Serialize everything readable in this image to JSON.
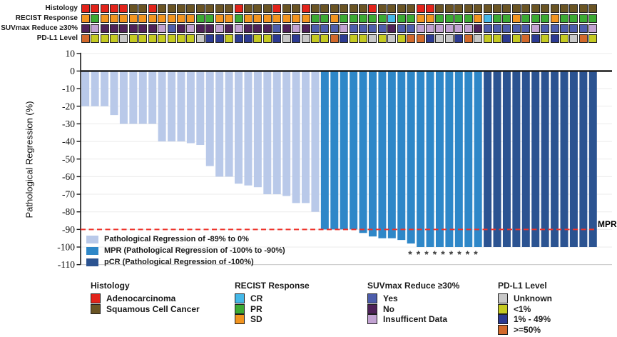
{
  "tracks": [
    {
      "label": "Histology",
      "palette": {
        "A": "#e2231a",
        "S": "#6a5423"
      },
      "cells": [
        "A",
        "A",
        "A",
        "A",
        "A",
        "S",
        "S",
        "A",
        "S",
        "S",
        "S",
        "S",
        "S",
        "S",
        "S",
        "S",
        "A",
        "S",
        "S",
        "S",
        "A",
        "S",
        "S",
        "A",
        "S",
        "S",
        "S",
        "S",
        "S",
        "S",
        "A",
        "S",
        "S",
        "S",
        "S",
        "A",
        "A",
        "S",
        "S",
        "S",
        "S",
        "S",
        "S",
        "S",
        "S",
        "S",
        "S",
        "S",
        "S",
        "S",
        "S",
        "S",
        "S",
        "S"
      ]
    },
    {
      "label": "RECIST Response",
      "palette": {
        "SD": "#f2941f",
        "PR": "#3caa33",
        "CR": "#45b8e8"
      },
      "cells": [
        "SD",
        "PR",
        "SD",
        "SD",
        "SD",
        "SD",
        "SD",
        "SD",
        "SD",
        "SD",
        "SD",
        "SD",
        "PR",
        "PR",
        "SD",
        "SD",
        "PR",
        "SD",
        "SD",
        "SD",
        "SD",
        "SD",
        "SD",
        "SD",
        "PR",
        "PR",
        "SD",
        "PR",
        "PR",
        "PR",
        "PR",
        "PR",
        "CR",
        "PR",
        "PR",
        "SD",
        "SD",
        "PR",
        "PR",
        "PR",
        "PR",
        "SD",
        "CR",
        "PR",
        "PR",
        "SD",
        "PR",
        "PR",
        "PR",
        "SD",
        "PR",
        "PR",
        "PR",
        "PR"
      ]
    },
    {
      "label": "SUVmax Reduce ≥30%",
      "palette": {
        "Y": "#4d5dab",
        "N": "#4e2158",
        "I": "#c2a2d2"
      },
      "cells": [
        "N",
        "I",
        "N",
        "N",
        "N",
        "N",
        "N",
        "N",
        "I",
        "Y",
        "N",
        "I",
        "N",
        "N",
        "I",
        "N",
        "I",
        "N",
        "N",
        "N",
        "Y",
        "N",
        "I",
        "N",
        "Y",
        "Y",
        "Y",
        "I",
        "Y",
        "Y",
        "Y",
        "Y",
        "N",
        "Y",
        "Y",
        "I",
        "I",
        "I",
        "I",
        "I",
        "I",
        "N",
        "Y",
        "Y",
        "Y",
        "Y",
        "Y",
        "I",
        "Y",
        "Y",
        "Y",
        "Y",
        "Y",
        "I"
      ]
    },
    {
      "label": "PD-L1 Level",
      "palette": {
        "U": "#c8c8c8",
        "Y": "#c5ca22",
        "B": "#2c3a92",
        "O": "#d2692b"
      },
      "cells": [
        "O",
        "Y",
        "Y",
        "Y",
        "U",
        "Y",
        "Y",
        "Y",
        "Y",
        "Y",
        "Y",
        "Y",
        "U",
        "B",
        "B",
        "Y",
        "B",
        "B",
        "Y",
        "Y",
        "B",
        "U",
        "B",
        "U",
        "Y",
        "Y",
        "O",
        "B",
        "Y",
        "Y",
        "U",
        "Y",
        "U",
        "Y",
        "O",
        "O",
        "B",
        "U",
        "U",
        "B",
        "O",
        "U",
        "Y",
        "Y",
        "B",
        "Y",
        "O",
        "B",
        "Y",
        "B",
        "Y",
        "U",
        "O",
        "Y"
      ]
    }
  ],
  "chart_data": {
    "type": "bar",
    "title": "",
    "xlabel": "",
    "ylabel": "Pathological Regression (%)",
    "ylim": [
      -110,
      10
    ],
    "yticks": [
      10,
      0,
      -10,
      -20,
      -30,
      -40,
      -50,
      -60,
      -70,
      -80,
      -90,
      -100,
      -110
    ],
    "grid": true,
    "n_patients": 54,
    "series": [
      {
        "name": "Pathological Regression of -89% to 0%",
        "color": "#b9c9e9",
        "values": [
          -20,
          -20,
          -20,
          -25,
          -30,
          -30,
          -30,
          -30,
          -40,
          -40,
          -40,
          -41,
          -42,
          -54,
          -60,
          -60,
          -64,
          -65,
          -66,
          -70,
          -70,
          -71,
          -75,
          -75,
          -80
        ]
      },
      {
        "name": "MPR (Pathological Regression of -100% to -90%)",
        "color": "#2e87c8",
        "values": [
          -90,
          -90,
          -90,
          -90,
          -92,
          -94,
          -95,
          -95,
          -96,
          -98,
          -100,
          -100,
          -100,
          -100,
          -100,
          -100,
          -100
        ]
      },
      {
        "name": "pCR (Pathological Regression of -100%)",
        "color": "#2b5391",
        "values": [
          -100,
          -100,
          -100,
          -100,
          -100,
          -100,
          -100,
          -100,
          -100,
          -100,
          -100,
          -100
        ]
      }
    ],
    "reference_line": {
      "value": -90,
      "label": "MPR",
      "color": "#ef3129",
      "style": "dashed"
    },
    "asterisks": {
      "symbol": "*",
      "count": 9
    },
    "legend_position": "inside-bottom-left"
  },
  "bottom_legends": [
    {
      "title": "Histology",
      "items": [
        {
          "label": "Adenocarcinoma",
          "color": "#e2231a"
        },
        {
          "label": "Squamous Cell Cancer",
          "color": "#6a5423"
        }
      ]
    },
    {
      "title": "RECIST Response",
      "items": [
        {
          "label": "CR",
          "color": "#45b8e8"
        },
        {
          "label": "PR",
          "color": "#3caa33"
        },
        {
          "label": "SD",
          "color": "#f2941f"
        }
      ]
    },
    {
      "title": "SUVmax Reduce ≥30%",
      "items": [
        {
          "label": "Yes",
          "color": "#4d5dab"
        },
        {
          "label": "No",
          "color": "#4e2158"
        },
        {
          "label": "Insufficent Data",
          "color": "#c2a2d2"
        }
      ]
    },
    {
      "title": "PD-L1 Level",
      "items": [
        {
          "label": "Unknown",
          "color": "#c8c8c8"
        },
        {
          "label": "<1%",
          "color": "#c5ca22"
        },
        {
          "label": "1% - 49%",
          "color": "#2c3a92"
        },
        {
          "label": ">=50%",
          "color": "#d2692b"
        }
      ]
    }
  ]
}
